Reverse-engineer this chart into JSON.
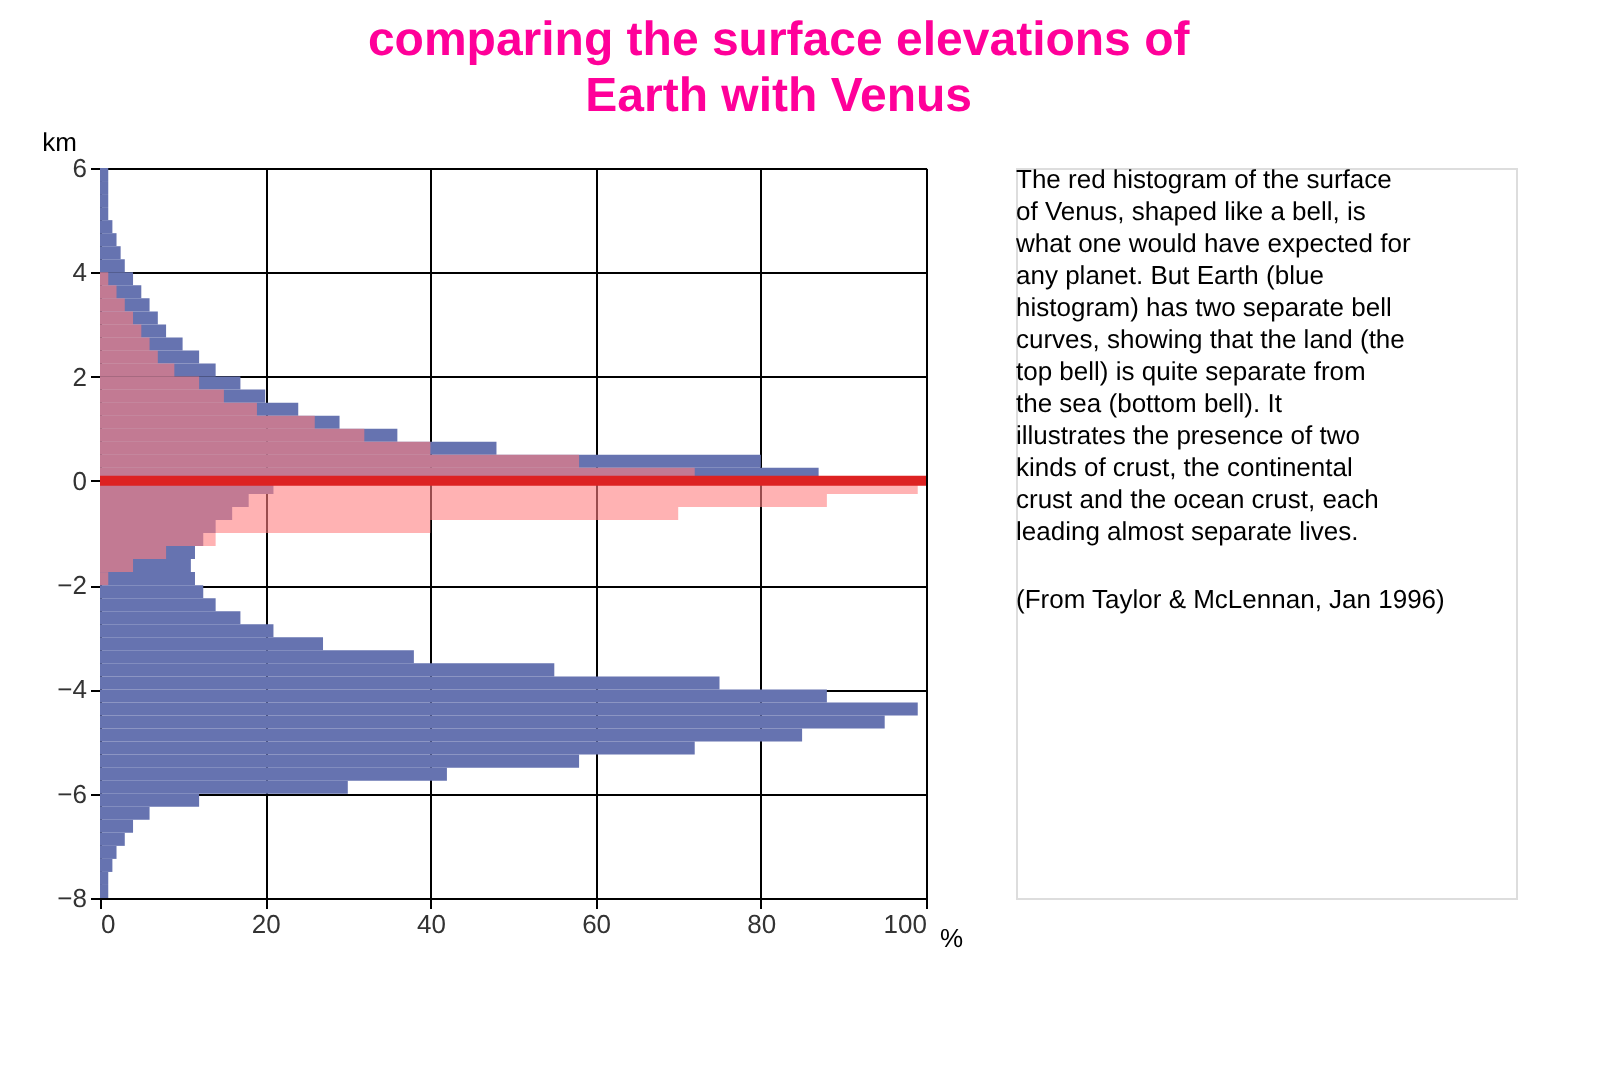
{
  "chart_data": {
    "type": "histogram",
    "orientation": "horizontal",
    "title": "comparing the surface elevations of Earth with Venus",
    "xlabel": "%",
    "ylabel": "km",
    "bins": [
      -8,
      -7.75,
      -7.5,
      -7.25,
      -7,
      -6.75,
      -6.5,
      -6.25,
      -6,
      -5.75,
      -5.5,
      -5.25,
      -5,
      -4.75,
      -4.5,
      -4.25,
      -4,
      -3.75,
      -3.5,
      -3.25,
      -3,
      -2.75,
      -2.5,
      -2.25,
      -2,
      -1.75,
      -1.5,
      -1.25,
      -1,
      -0.75,
      -0.5,
      -0.25,
      0,
      0.25,
      0.5,
      0.75,
      1,
      1.25,
      1.5,
      1.75,
      2,
      2.25,
      2.5,
      2.75,
      3,
      3.25,
      3.5,
      3.75,
      4,
      4.25,
      4.5,
      4.75,
      5,
      5.25,
      5.5,
      5.75,
      6
    ],
    "series": [
      {
        "color": "#6673b0",
        "values": [
          1,
          1,
          1.5,
          2,
          3,
          4,
          6,
          12,
          30,
          42,
          58,
          72,
          85,
          95,
          99,
          88,
          75,
          55,
          38,
          27,
          21,
          17,
          14,
          12.5,
          11.5,
          11,
          11.5,
          12.5,
          14,
          16,
          18,
          21,
          87,
          80,
          48,
          36,
          29,
          24,
          20,
          17,
          14,
          12,
          10,
          8,
          7,
          6,
          5,
          4,
          3,
          2.5,
          2,
          1.5,
          1,
          1,
          1,
          1
        ]
      },
      {
        "color": "#ff7f80",
        "values": [
          null,
          null,
          null,
          null,
          null,
          null,
          null,
          null,
          null,
          null,
          null,
          null,
          null,
          null,
          null,
          null,
          null,
          null,
          null,
          null,
          null,
          null,
          null,
          null,
          1,
          4,
          8,
          14,
          40,
          70,
          88,
          99,
          72,
          58,
          40,
          32,
          26,
          19,
          15,
          12,
          9,
          7,
          6,
          5,
          4,
          3,
          2,
          1,
          null,
          null,
          null,
          null,
          null,
          null,
          null,
          null
        ]
      }
    ],
    "xlim": [
      0,
      100
    ],
    "ylim": [
      -8,
      6
    ],
    "xticks": [
      0,
      20,
      40,
      60,
      80,
      100
    ],
    "yticks": [
      -8,
      -6,
      -4,
      -2,
      0,
      2,
      4,
      6
    ],
    "grid": true,
    "ref_lines": [
      {
        "axis": "y",
        "value": 0,
        "color": "#dd2222"
      }
    ],
    "annotations": [
      "The red histogram of the surface of Venus, shaped like a bell, is what one would have expected for any planet. But Earth (blue histogram) has two separate bell curves, showing that the land (the top bell) is quite separate from the sea (bottom bell). It illustrates the presence of two kinds of crust, the continental crust and the ocean crust, each leading almost separate lives.",
      "(From Taylor & McLennan, Jan 1996)"
    ]
  }
}
